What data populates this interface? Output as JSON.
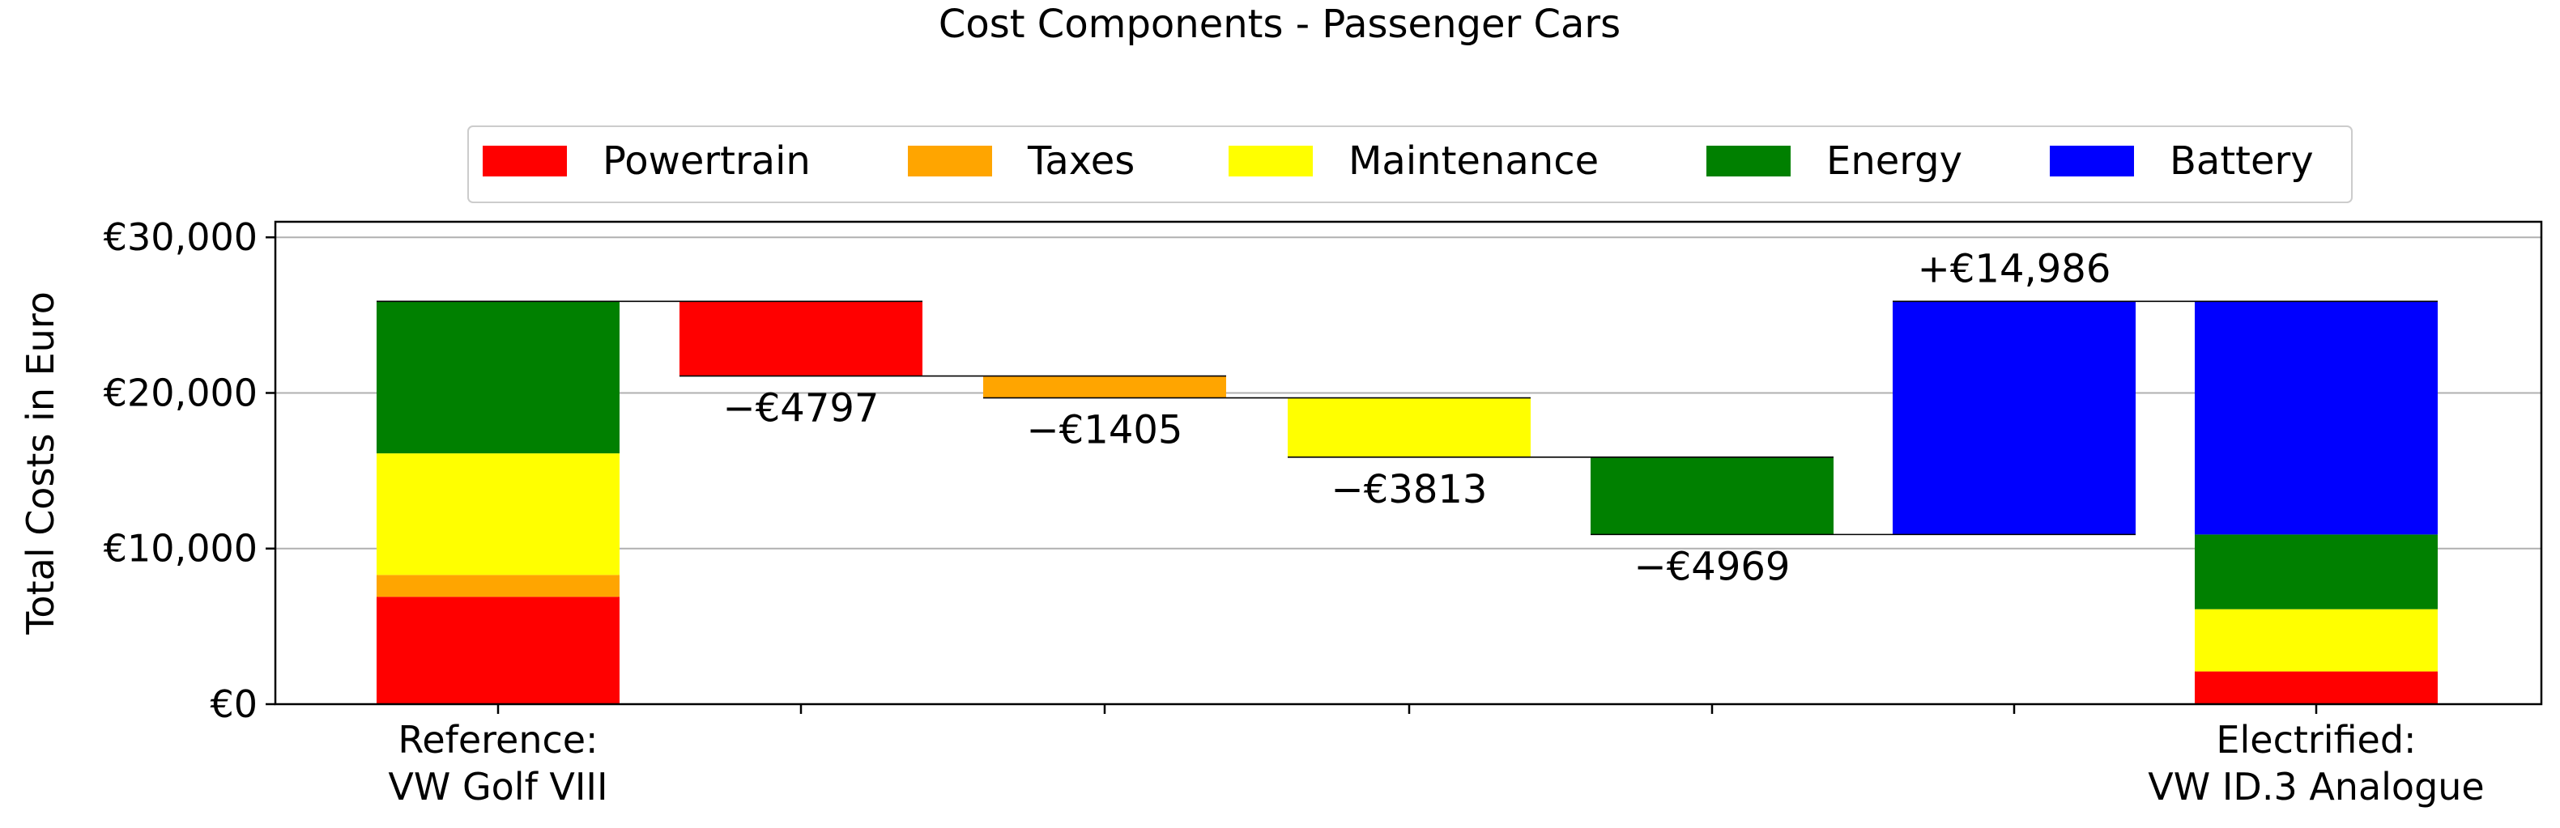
{
  "chart_data": {
    "type": "bar",
    "title": "Cost Components - Passenger Cars",
    "xlabel": "",
    "ylabel": "Total Costs in Euro",
    "ylim": [
      0,
      31000
    ],
    "yticks": [
      0,
      10000,
      20000,
      30000
    ],
    "ytick_labels": [
      "€0",
      "€10,000",
      "€20,000",
      "€30,000"
    ],
    "grid": "horizontal",
    "legend_position": "top-center",
    "colors": {
      "Powertrain": "#ff0000",
      "Taxes": "#ffa500",
      "Maintenance": "#ffff00",
      "Energy": "#008000",
      "Battery": "#0000ff"
    },
    "legend": [
      "Powertrain",
      "Taxes",
      "Maintenance",
      "Energy",
      "Battery"
    ],
    "category_labels": [
      "Reference:\nVW Golf VIII",
      "",
      "",
      "",
      "",
      "",
      "Electrified:\nVW ID.3 Analogue"
    ],
    "reference_stack": [
      {
        "name": "Powertrain",
        "bottom": 0,
        "value": 6900
      },
      {
        "name": "Taxes",
        "bottom": 6900,
        "value": 1405
      },
      {
        "name": "Maintenance",
        "bottom": 8305,
        "value": 7813
      },
      {
        "name": "Energy",
        "bottom": 16118,
        "value": 9769
      }
    ],
    "steps": [
      {
        "name": "Powertrain",
        "from": 25887,
        "to": 21090,
        "label": "−€4797"
      },
      {
        "name": "Taxes",
        "from": 21090,
        "to": 19685,
        "label": "−€1405"
      },
      {
        "name": "Maintenance",
        "from": 19685,
        "to": 15872,
        "label": "−€3813"
      },
      {
        "name": "Energy",
        "from": 15872,
        "to": 10903,
        "label": "−€4969"
      },
      {
        "name": "Battery",
        "from": 10903,
        "to": 25889,
        "label": "+€14,986"
      }
    ],
    "electrified_stack": [
      {
        "name": "Powertrain",
        "bottom": 0,
        "value": 2103
      },
      {
        "name": "Taxes",
        "bottom": 2103,
        "value": 0
      },
      {
        "name": "Maintenance",
        "bottom": 2103,
        "value": 4000
      },
      {
        "name": "Energy",
        "bottom": 6103,
        "value": 4800
      },
      {
        "name": "Battery",
        "bottom": 10903,
        "value": 14986
      }
    ]
  }
}
